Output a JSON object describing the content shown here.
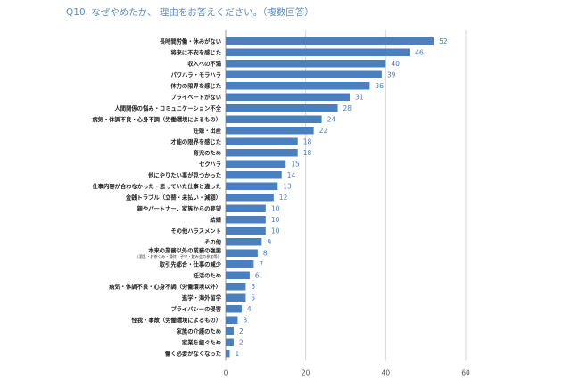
{
  "chart_data": {
    "type": "bar",
    "orientation": "horizontal",
    "title": "Q10. なぜやめたか、 理由をお答えください。（複数回答）",
    "categories": [
      "長時間労働・休みがない",
      "将来に不安を感じた",
      "収入への不満",
      "パワハラ・モラハラ",
      "体力の限界を感じた",
      "プライベートがない",
      "人間関係の悩み・コミュニケーション不全",
      "病気・体調不良・心身不調（労働環境によるもの）",
      "妊娠・出産",
      "才能の限界を感じた",
      "育児のため",
      "セクハラ",
      "他にやりたい事が見つかった",
      "仕事内容が合わなかった・思っていた仕事と違った",
      "金銭トラブル（立替・未払い・減額）",
      "親やパートナー、家族からの要望",
      "結婚",
      "その他ハラスメント",
      "その他",
      "本来の業務以外の業務の強要",
      "取引先都合・仕事の減少",
      "妊活のため",
      "病気・体調不良・心身不調（労働環境以外）",
      "進学・海外留学",
      "プライバシーの侵害",
      "怪我・事故（労働環境によるもの）",
      "家族の介護のため",
      "家業を継ぐため",
      "働く必要がなくなった"
    ],
    "category_notes": {
      "19": "（酒乱・お茶くみ・掃除・子守・飲み会の参加等）"
    },
    "values": [
      52,
      46,
      40,
      39,
      36,
      31,
      28,
      24,
      22,
      18,
      18,
      15,
      14,
      13,
      12,
      10,
      10,
      10,
      9,
      8,
      7,
      6,
      5,
      5,
      4,
      3,
      2,
      2,
      1
    ],
    "xlim": [
      0,
      60
    ],
    "xticks": [
      0,
      20,
      40,
      60
    ],
    "grid": true,
    "bar_color": "#4a7fc0",
    "label_color": "#4a7fc0",
    "title_color": "#5b8cc4"
  }
}
